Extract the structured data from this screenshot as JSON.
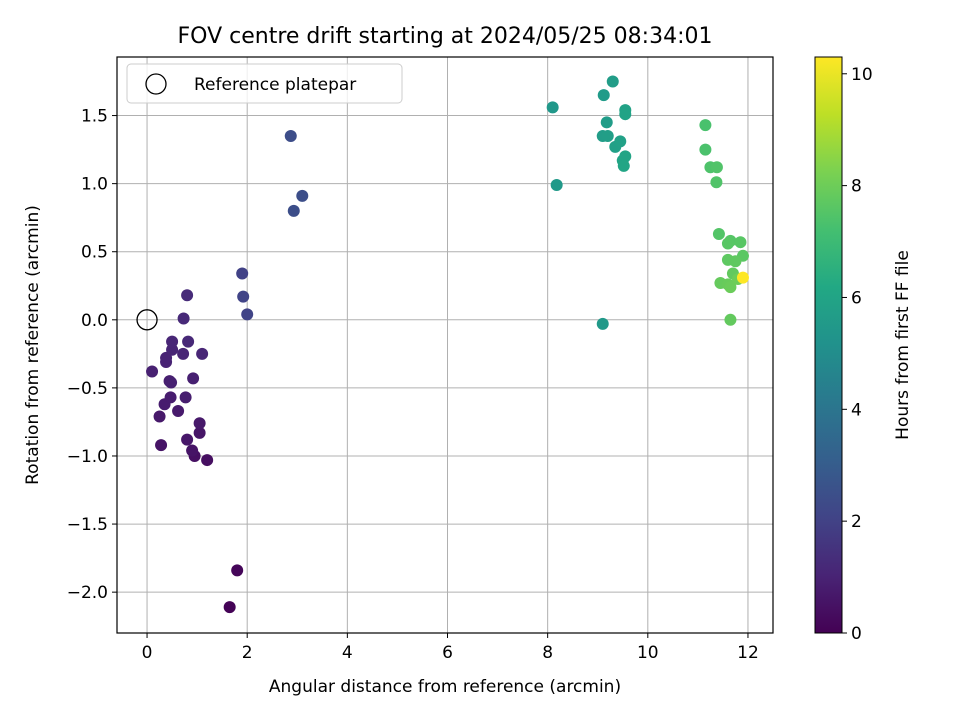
{
  "chart_data": {
    "type": "scatter",
    "title": "FOV centre drift starting at 2024/05/25 08:34:01",
    "xlabel": "Angular distance from reference (arcmin)",
    "ylabel": "Rotation from reference (arcmin)",
    "xlim": [
      -0.6,
      12.5
    ],
    "ylim": [
      -2.3,
      1.93
    ],
    "xticks": [
      0,
      2,
      4,
      6,
      8,
      10,
      12
    ],
    "xtick_labels": [
      "0",
      "2",
      "4",
      "6",
      "8",
      "10",
      "12"
    ],
    "yticks": [
      -2.0,
      -1.5,
      -1.0,
      -0.5,
      0.0,
      0.5,
      1.0,
      1.5
    ],
    "ytick_labels": [
      "−2.0",
      "−1.5",
      "−1.0",
      "−0.5",
      "0.0",
      "0.5",
      "1.0",
      "1.5"
    ],
    "grid": true,
    "legend": {
      "placement": "upper-left",
      "entries": [
        "Reference platepar"
      ]
    },
    "reference_point": {
      "x": 0,
      "y": 0,
      "marker": "hollow-circle"
    },
    "colorbar": {
      "label": "Hours from first FF file",
      "range": [
        0,
        10.3
      ],
      "ticks": [
        0,
        2,
        4,
        6,
        8,
        10
      ],
      "tick_labels": [
        "0",
        "2",
        "4",
        "6",
        "8",
        "10"
      ],
      "colormap": "viridis"
    },
    "points": [
      {
        "x": 1.65,
        "y": -2.11,
        "t": 0.05
      },
      {
        "x": 1.8,
        "y": -1.84,
        "t": 0.15
      },
      {
        "x": 1.2,
        "y": -1.03,
        "t": 0.4
      },
      {
        "x": 0.95,
        "y": -1.0,
        "t": 0.45
      },
      {
        "x": 0.28,
        "y": -0.92,
        "t": 0.55
      },
      {
        "x": 0.9,
        "y": -0.96,
        "t": 0.55
      },
      {
        "x": 1.05,
        "y": -0.83,
        "t": 0.6
      },
      {
        "x": 0.8,
        "y": -0.88,
        "t": 0.65
      },
      {
        "x": 1.05,
        "y": -0.76,
        "t": 0.7
      },
      {
        "x": 0.25,
        "y": -0.71,
        "t": 0.7
      },
      {
        "x": 0.62,
        "y": -0.67,
        "t": 0.75
      },
      {
        "x": 0.35,
        "y": -0.62,
        "t": 0.8
      },
      {
        "x": 0.47,
        "y": -0.57,
        "t": 0.8
      },
      {
        "x": 0.77,
        "y": -0.57,
        "t": 0.85
      },
      {
        "x": 0.45,
        "y": -0.45,
        "t": 0.85
      },
      {
        "x": 0.92,
        "y": -0.43,
        "t": 0.9
      },
      {
        "x": 0.48,
        "y": -0.46,
        "t": 0.9
      },
      {
        "x": 0.1,
        "y": -0.38,
        "t": 0.95
      },
      {
        "x": 0.38,
        "y": -0.31,
        "t": 1.0
      },
      {
        "x": 0.38,
        "y": -0.28,
        "t": 1.0
      },
      {
        "x": 0.5,
        "y": -0.22,
        "t": 1.05
      },
      {
        "x": 0.72,
        "y": -0.25,
        "t": 1.05
      },
      {
        "x": 1.1,
        "y": -0.25,
        "t": 1.1
      },
      {
        "x": 0.5,
        "y": -0.16,
        "t": 1.1
      },
      {
        "x": 0.82,
        "y": -0.16,
        "t": 1.15
      },
      {
        "x": 0.73,
        "y": 0.01,
        "t": 1.2
      },
      {
        "x": 0.8,
        "y": 0.18,
        "t": 1.25
      },
      {
        "x": 1.9,
        "y": 0.34,
        "t": 2.0
      },
      {
        "x": 1.92,
        "y": 0.17,
        "t": 2.05
      },
      {
        "x": 2.0,
        "y": 0.04,
        "t": 2.05
      },
      {
        "x": 2.87,
        "y": 1.35,
        "t": 2.4
      },
      {
        "x": 3.1,
        "y": 0.91,
        "t": 2.45
      },
      {
        "x": 2.93,
        "y": 0.8,
        "t": 2.45
      },
      {
        "x": 8.1,
        "y": 1.56,
        "t": 5.45
      },
      {
        "x": 8.18,
        "y": 0.99,
        "t": 5.5
      },
      {
        "x": 9.1,
        "y": -0.03,
        "t": 5.5
      },
      {
        "x": 9.12,
        "y": 1.65,
        "t": 5.6
      },
      {
        "x": 9.3,
        "y": 1.75,
        "t": 5.7
      },
      {
        "x": 9.18,
        "y": 1.45,
        "t": 5.65
      },
      {
        "x": 9.1,
        "y": 1.35,
        "t": 5.7
      },
      {
        "x": 9.2,
        "y": 1.35,
        "t": 5.75
      },
      {
        "x": 9.35,
        "y": 1.27,
        "t": 5.8
      },
      {
        "x": 9.45,
        "y": 1.31,
        "t": 5.85
      },
      {
        "x": 9.55,
        "y": 1.54,
        "t": 5.9
      },
      {
        "x": 9.55,
        "y": 1.51,
        "t": 5.95
      },
      {
        "x": 9.55,
        "y": 1.2,
        "t": 6.0
      },
      {
        "x": 9.5,
        "y": 1.17,
        "t": 6.0
      },
      {
        "x": 9.52,
        "y": 1.13,
        "t": 6.05
      },
      {
        "x": 11.15,
        "y": 1.43,
        "t": 7.3
      },
      {
        "x": 11.15,
        "y": 1.25,
        "t": 7.35
      },
      {
        "x": 11.25,
        "y": 1.12,
        "t": 7.4
      },
      {
        "x": 11.38,
        "y": 1.12,
        "t": 7.45
      },
      {
        "x": 11.37,
        "y": 1.01,
        "t": 7.45
      },
      {
        "x": 11.42,
        "y": 0.63,
        "t": 7.5
      },
      {
        "x": 11.65,
        "y": 0.58,
        "t": 7.55
      },
      {
        "x": 11.85,
        "y": 0.57,
        "t": 7.6
      },
      {
        "x": 11.6,
        "y": 0.56,
        "t": 7.6
      },
      {
        "x": 11.9,
        "y": 0.47,
        "t": 7.65
      },
      {
        "x": 11.6,
        "y": 0.44,
        "t": 7.7
      },
      {
        "x": 11.75,
        "y": 0.43,
        "t": 7.75
      },
      {
        "x": 11.7,
        "y": 0.34,
        "t": 7.8
      },
      {
        "x": 11.45,
        "y": 0.27,
        "t": 7.85
      },
      {
        "x": 11.6,
        "y": 0.26,
        "t": 7.9
      },
      {
        "x": 11.65,
        "y": 0.24,
        "t": 7.95
      },
      {
        "x": 11.8,
        "y": 0.3,
        "t": 8.0
      },
      {
        "x": 11.65,
        "y": 0.0,
        "t": 7.8
      },
      {
        "x": 11.9,
        "y": 0.31,
        "t": 10.3
      }
    ]
  }
}
